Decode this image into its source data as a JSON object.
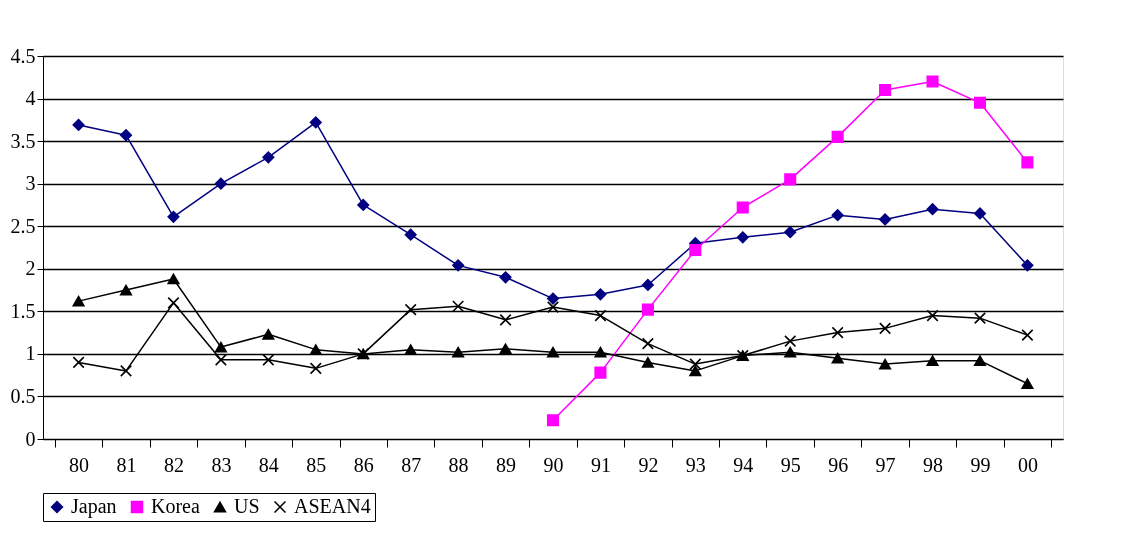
{
  "chart_data": {
    "type": "line",
    "categories": [
      "80",
      "81",
      "82",
      "83",
      "84",
      "85",
      "86",
      "87",
      "88",
      "89",
      "90",
      "91",
      "92",
      "93",
      "94",
      "95",
      "96",
      "97",
      "98",
      "99",
      "00"
    ],
    "series": [
      {
        "name": "Japan",
        "color": "#000080",
        "marker": "diamond",
        "values": [
          3.69,
          3.57,
          2.61,
          3.0,
          3.31,
          3.72,
          2.75,
          2.4,
          2.04,
          1.9,
          1.65,
          1.7,
          1.81,
          2.3,
          2.37,
          2.43,
          2.63,
          2.58,
          2.7,
          2.65,
          2.04
        ]
      },
      {
        "name": "Korea",
        "color": "#ff00ff",
        "marker": "square",
        "values": [
          null,
          null,
          null,
          null,
          null,
          null,
          null,
          null,
          null,
          null,
          0.22,
          0.78,
          1.52,
          2.22,
          2.72,
          3.05,
          3.55,
          4.1,
          4.2,
          3.95,
          3.25
        ]
      },
      {
        "name": "US",
        "color": "#000000",
        "marker": "triangle",
        "values": [
          1.62,
          1.75,
          1.88,
          1.08,
          1.23,
          1.05,
          1.0,
          1.05,
          1.02,
          1.06,
          1.02,
          1.02,
          0.9,
          0.8,
          0.98,
          1.02,
          0.95,
          0.88,
          0.92,
          0.92,
          0.65
        ]
      },
      {
        "name": "ASEAN4",
        "color": "#000000",
        "marker": "cross",
        "values": [
          0.9,
          0.8,
          1.6,
          0.93,
          0.93,
          0.83,
          1.0,
          1.52,
          1.56,
          1.4,
          1.55,
          1.45,
          1.12,
          0.88,
          0.98,
          1.15,
          1.25,
          1.3,
          1.45,
          1.42,
          1.22
        ]
      }
    ],
    "ylim": [
      0,
      4.5
    ],
    "yticks": [
      0,
      0.5,
      1,
      1.5,
      2,
      2.5,
      3,
      3.5,
      4,
      4.5
    ],
    "grid": "y",
    "legend": "bottom",
    "line_style": "solid"
  }
}
